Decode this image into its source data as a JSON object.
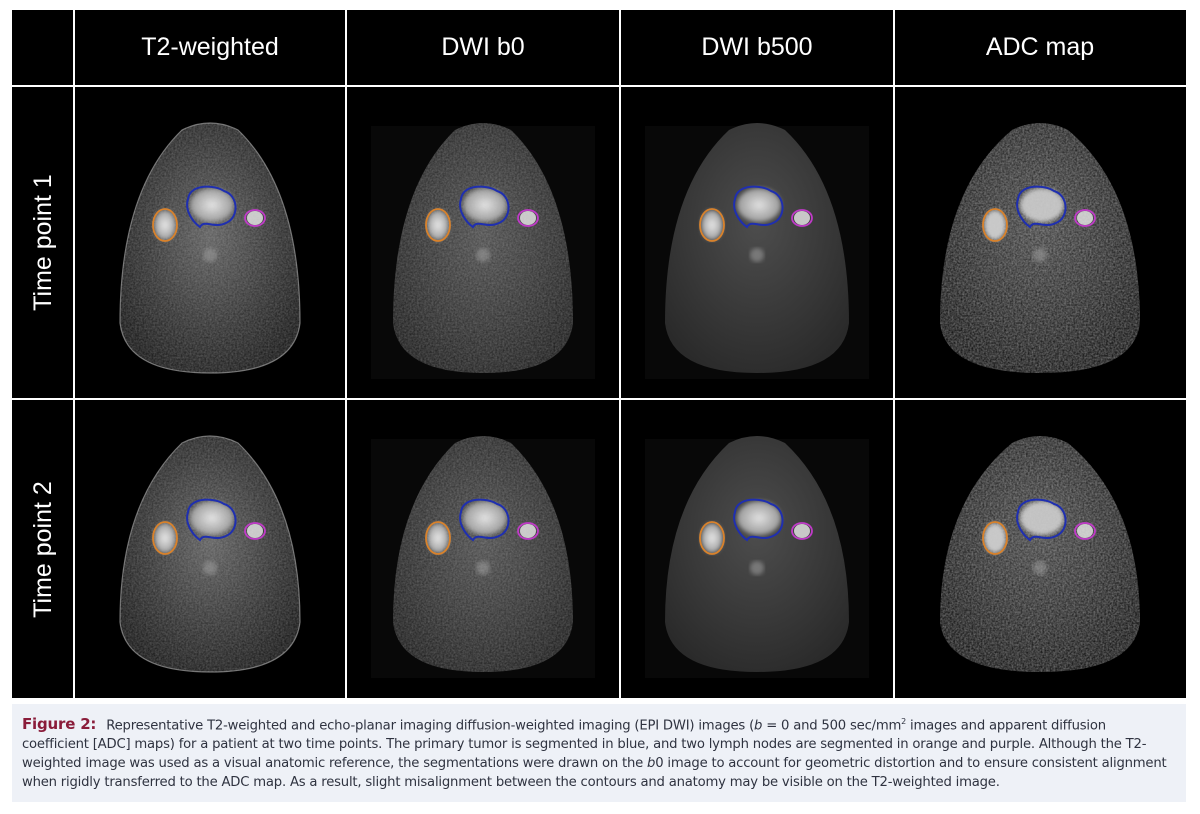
{
  "figure": {
    "columns": [
      "T2-weighted",
      "DWI b0",
      "DWI b500",
      "ADC map"
    ],
    "rows": [
      "Time point 1",
      "Time point 2"
    ],
    "contour_colors": {
      "primary_tumor": "#1f2fb0",
      "lymph_node_1": "#d9822b",
      "lymph_node_2": "#c03ac8"
    },
    "grid_color": "#ffffff",
    "background": "#000000"
  },
  "caption": {
    "label": "Figure 2:",
    "text_part1": "Representative T2-weighted and echo-planar imaging diffusion-weighted imaging (EPI DWI) images (",
    "b_symbol": "b",
    "text_part2": " = 0 and 500 sec/mm",
    "superscript": "2",
    "text_part3": " images and apparent diffusion coefficient [ADC] maps) for a patient at two time points. The primary tumor is segmented in blue, and two lymph nodes are segmented in orange and purple. Although the T2-weighted image was used as a visual anatomic reference, the segmentations were drawn on the ",
    "b0_symbol": "b",
    "text_part4": "0 image to account for geometric distortion and to ensure consistent alignment when rigidly transferred to the ADC map. As a result, slight misalignment between the contours and anatomy may be visible on the T2-weighted image."
  }
}
